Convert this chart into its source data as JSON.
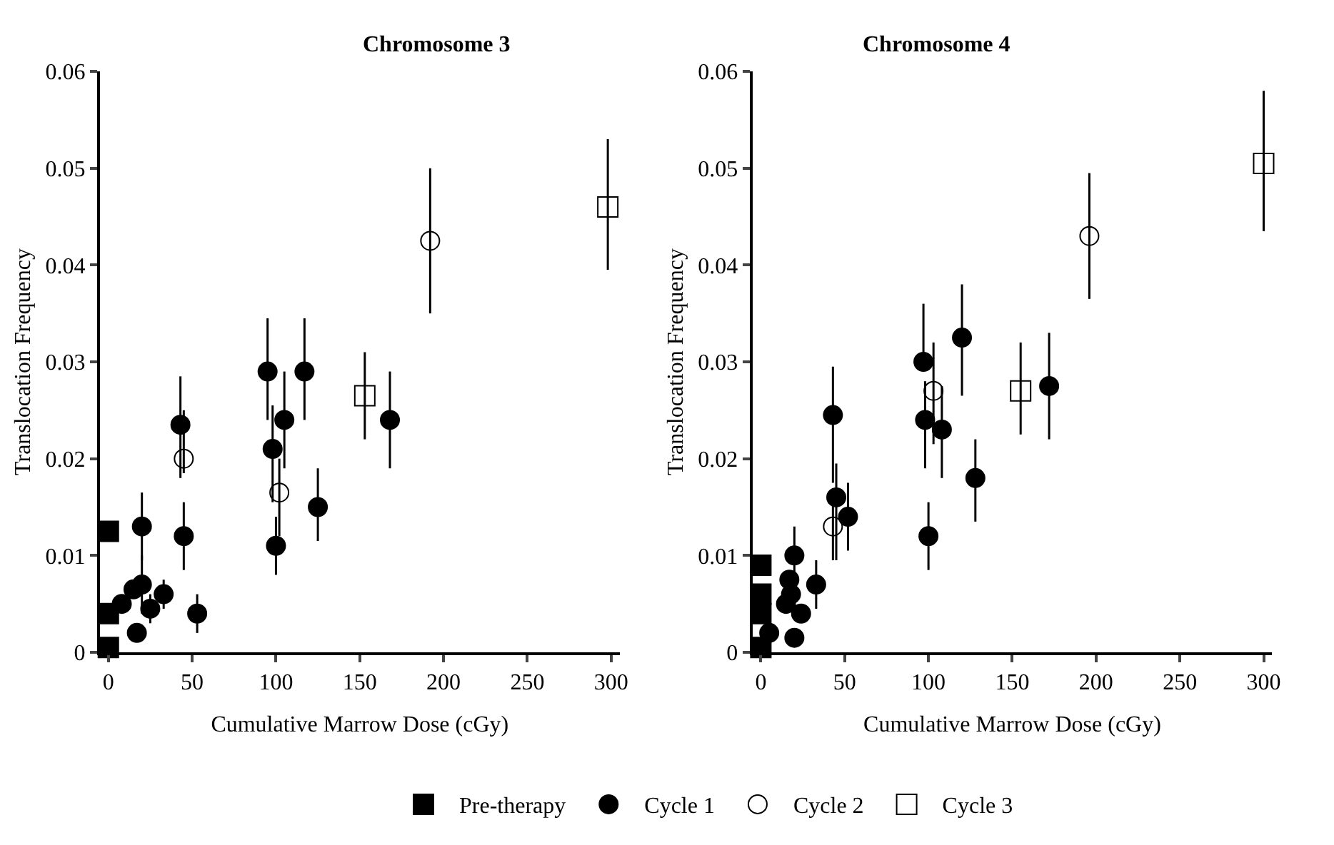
{
  "chart_data": [
    {
      "type": "scatter",
      "title": "Chromosome 3",
      "xlabel": "Cumulative Marrow Dose (cGy)",
      "ylabel": "Translocation Frequency",
      "xlim": [
        -5,
        305
      ],
      "xticks": [
        0,
        50,
        100,
        150,
        200,
        250,
        300
      ],
      "ylim": [
        0,
        0.06
      ],
      "yticks": [
        0,
        0.01,
        0.02,
        0.03,
        0.04,
        0.05,
        0.06
      ],
      "legend": "bottom",
      "series": [
        {
          "name": "Pre-therapy",
          "color": "#000000",
          "marker": "square",
          "x": [
            0,
            0,
            0
          ],
          "values": [
            0.0125,
            0.004,
            0.0005
          ]
        },
        {
          "name": "Cycle 1",
          "color": "#000000",
          "marker": "circle",
          "x": [
            8,
            15,
            17,
            20,
            20,
            25,
            33,
            43,
            45,
            53,
            95,
            98,
            100,
            105,
            117,
            125,
            168
          ],
          "values": [
            0.005,
            0.0065,
            0.002,
            0.013,
            0.007,
            0.0045,
            0.006,
            0.0235,
            0.012,
            0.004,
            0.029,
            0.021,
            0.011,
            0.024,
            0.029,
            0.015,
            0.024
          ],
          "errors": [
            null,
            null,
            null,
            [
              0.0095,
              0.0165
            ],
            [
              0.004,
              0.01
            ],
            [
              0.003,
              0.006
            ],
            [
              0.0045,
              0.0075
            ],
            [
              0.018,
              0.0285
            ],
            [
              0.0085,
              0.0155
            ],
            [
              0.002,
              0.006
            ],
            [
              0.024,
              0.0345
            ],
            [
              0.0155,
              0.0255
            ],
            [
              0.008,
              0.014
            ],
            [
              0.019,
              0.029
            ],
            [
              0.024,
              0.0345
            ],
            [
              0.0115,
              0.019
            ],
            [
              0.019,
              0.029
            ]
          ]
        },
        {
          "name": "Cycle 2",
          "color": "#000000",
          "marker": "circle-open",
          "x": [
            45,
            102,
            192
          ],
          "values": [
            0.02,
            0.0165,
            0.0425
          ],
          "errors": [
            [
              0.0185,
              0.025
            ],
            [
              0.012,
              0.02
            ],
            [
              0.035,
              0.05
            ]
          ]
        },
        {
          "name": "Cycle 3",
          "color": "#000000",
          "marker": "square-open",
          "x": [
            153,
            298
          ],
          "values": [
            0.0265,
            0.046
          ],
          "errors": [
            [
              0.022,
              0.031
            ],
            [
              0.0395,
              0.053
            ]
          ]
        }
      ]
    },
    {
      "type": "scatter",
      "title": "Chromosome 4",
      "xlabel": "Cumulative Marrow Dose (cGy)",
      "ylabel": "Translocation Frequency",
      "xlim": [
        -5,
        305
      ],
      "xticks": [
        0,
        50,
        100,
        150,
        200,
        250,
        300
      ],
      "ylim": [
        0,
        0.06
      ],
      "yticks": [
        0,
        0.01,
        0.02,
        0.03,
        0.04,
        0.05,
        0.06
      ],
      "series": [
        {
          "color": "#000000",
          "marker": "square",
          "x": [
            0,
            0,
            0,
            0
          ],
          "values": [
            0.009,
            0.006,
            0.004,
            0.0005
          ]
        },
        {
          "color": "#000000",
          "marker": "circle",
          "x": [
            5,
            15,
            17,
            18,
            20,
            20,
            24,
            33,
            43,
            45,
            52,
            97,
            98,
            100,
            108,
            120,
            128,
            172
          ],
          "values": [
            0.002,
            0.005,
            0.0075,
            0.006,
            0.01,
            0.0015,
            0.004,
            0.007,
            0.0245,
            0.016,
            0.014,
            0.03,
            0.024,
            0.012,
            0.023,
            0.0325,
            0.018,
            0.0275
          ],
          "errors": [
            null,
            null,
            null,
            null,
            [
              0.007,
              0.013
            ],
            null,
            null,
            [
              0.0045,
              0.0095
            ],
            [
              0.0175,
              0.0295
            ],
            [
              0.0095,
              0.0195
            ],
            [
              0.0105,
              0.0175
            ],
            [
              0.03,
              0.036
            ],
            [
              0.019,
              0.028
            ],
            [
              0.0085,
              0.0155
            ],
            [
              0.018,
              0.0275
            ],
            [
              0.0265,
              0.038
            ],
            [
              0.0135,
              0.022
            ],
            [
              0.022,
              0.033
            ]
          ]
        },
        {
          "color": "#000000",
          "marker": "circle-open",
          "x": [
            43,
            103,
            196
          ],
          "values": [
            0.013,
            0.027,
            0.043
          ],
          "errors": [
            [
              0.0095,
              0.0165
            ],
            [
              0.0215,
              0.032
            ],
            [
              0.0365,
              0.0495
            ]
          ]
        },
        {
          "color": "#000000",
          "marker": "square-open",
          "x": [
            155,
            300
          ],
          "values": [
            0.027,
            0.0505
          ],
          "errors": [
            [
              0.0225,
              0.032
            ],
            [
              0.0435,
              0.058
            ]
          ]
        }
      ]
    }
  ]
}
